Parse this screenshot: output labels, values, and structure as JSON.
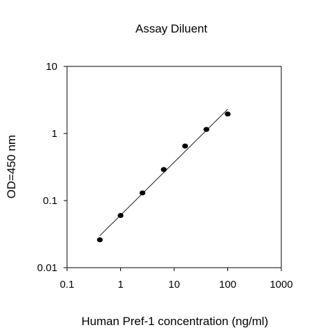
{
  "chart_data": {
    "type": "scatter",
    "title": "Assay Diluent",
    "xlabel": "Human Pref-1 concentration (ng/ml)",
    "ylabel": "OD=450 nm",
    "x_scale": "log",
    "y_scale": "log",
    "xlim": [
      0.1,
      1000
    ],
    "ylim": [
      0.01,
      10
    ],
    "x_ticks": [
      "0.1",
      "1",
      "10",
      "100",
      "1000"
    ],
    "y_ticks": [
      "0.01",
      "0.1",
      "1",
      "10"
    ],
    "grid": false,
    "legend": "none",
    "points": [
      {
        "x": 0.41,
        "y": 0.026
      },
      {
        "x": 1.0,
        "y": 0.06
      },
      {
        "x": 2.56,
        "y": 0.13
      },
      {
        "x": 6.4,
        "y": 0.29
      },
      {
        "x": 16,
        "y": 0.65
      },
      {
        "x": 40,
        "y": 1.15
      },
      {
        "x": 100,
        "y": 1.95
      }
    ],
    "fit_line": [
      {
        "x": 0.41,
        "y": 0.03
      },
      {
        "x": 100,
        "y": 2.3
      }
    ],
    "colors": {
      "points": "#000000",
      "line": "#000000"
    }
  }
}
